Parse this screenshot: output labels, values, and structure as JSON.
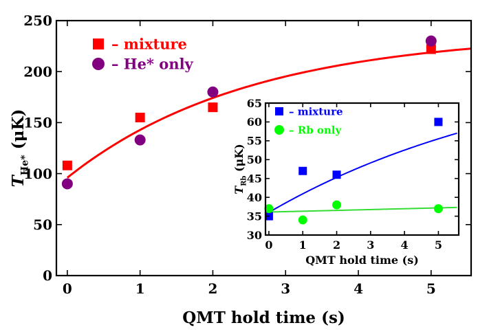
{
  "chart_data": [
    {
      "type": "scatter",
      "name": "main",
      "xlabel": "QMT hold time (s)",
      "ylabel_main": "T",
      "ylabel_sub": "He*",
      "ylabel_unit": " (μK)",
      "xlim": [
        -0.15,
        5.55
      ],
      "ylim": [
        0,
        250
      ],
      "xticks": [
        0,
        1,
        2,
        3,
        4,
        5
      ],
      "yticks": [
        0,
        50,
        100,
        150,
        200,
        250
      ],
      "legend_position": "top-left",
      "series": [
        {
          "name": "mixture",
          "legend_label": "– mixture",
          "marker": "square",
          "color": "#ff0000",
          "x": [
            0,
            1,
            2,
            5
          ],
          "y": [
            108,
            155,
            165,
            222
          ]
        },
        {
          "name": "He* only",
          "legend_label": "– He* only",
          "marker": "circle",
          "color": "#800080",
          "x": [
            0,
            1,
            2,
            5
          ],
          "y": [
            90,
            133,
            180,
            230
          ]
        }
      ],
      "fit": {
        "color": "#ff0000",
        "model": "exp_approach",
        "a": 238,
        "b": 142,
        "tau": 2.5,
        "x_range": [
          0,
          5.55
        ]
      }
    },
    {
      "type": "scatter",
      "name": "inset",
      "xlabel": "QMT hold time (s)",
      "ylabel_main": "T",
      "ylabel_sub": "Rb",
      "ylabel_unit": " (μK)",
      "xlim": [
        -0.1,
        5.6
      ],
      "ylim": [
        30,
        65
      ],
      "xticks": [
        0,
        1,
        2,
        3,
        4,
        5
      ],
      "yticks": [
        30,
        35,
        40,
        45,
        50,
        55,
        60,
        65
      ],
      "legend_position": "top-left",
      "series": [
        {
          "name": "mixture",
          "legend_label": "– mixture",
          "marker": "square",
          "color": "#0000ff",
          "x": [
            0,
            1,
            2,
            5
          ],
          "y": [
            35,
            47,
            46,
            60
          ]
        },
        {
          "name": "Rb only",
          "legend_label": "– Rb only",
          "marker": "circle",
          "color": "#00ff00",
          "x": [
            0,
            1,
            2,
            5
          ],
          "y": [
            37,
            34,
            38,
            37
          ]
        }
      ],
      "fits": [
        {
          "color": "#0000ff",
          "model": "exp_approach",
          "a": 78,
          "b": 42,
          "tau": 8.0,
          "x_range": [
            0,
            5.55
          ]
        },
        {
          "color": "#33dd33",
          "model": "linear",
          "m": 0.22,
          "c": 36.1,
          "x_range": [
            0,
            5.55
          ]
        }
      ]
    }
  ]
}
